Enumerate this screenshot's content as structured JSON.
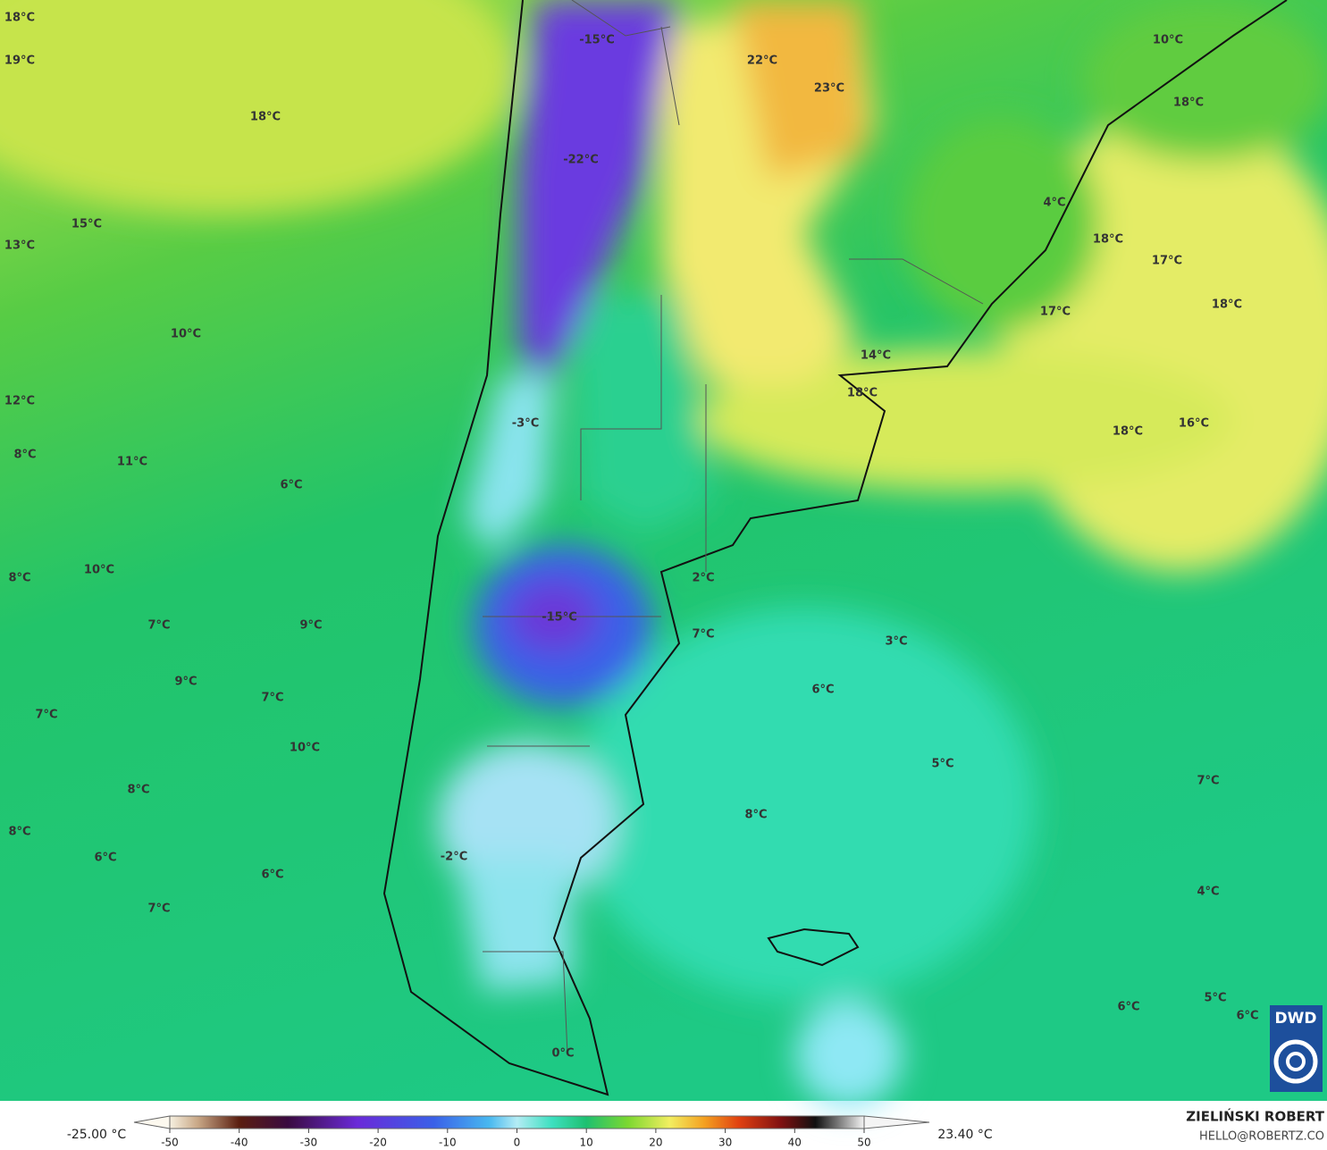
{
  "map": {
    "labels": [
      "18°C",
      "19°C",
      "18°C",
      "-15°C",
      "22°C",
      "23°C",
      "10°C",
      "18°C",
      "-22°C",
      "15°C",
      "13°C",
      "4°C",
      "18°C",
      "17°C",
      "18°C",
      "17°C",
      "10°C",
      "14°C",
      "18°C",
      "12°C",
      "18°C",
      "16°C",
      "-3°C",
      "8°C",
      "11°C",
      "6°C",
      "2°C",
      "8°C",
      "10°C",
      "-15°C",
      "7°C",
      "9°C",
      "7°C",
      "3°C",
      "9°C",
      "7°C",
      "6°C",
      "7°C",
      "10°C",
      "5°C",
      "7°C",
      "8°C",
      "8°C",
      "8°C",
      "-2°C",
      "6°C",
      "6°C",
      "4°C",
      "7°C",
      "5°C",
      "6°C",
      "6°C",
      "0°C"
    ]
  },
  "colorbar": {
    "lim": [
      -50,
      50
    ],
    "ticks": [
      -50,
      -40,
      -30,
      -20,
      -10,
      0,
      10,
      20,
      30,
      40,
      50
    ],
    "min_label": "-25.00 °C",
    "max_label": "23.40 °C"
  },
  "logo": "DWD",
  "author": "ZIELIŃSKI ROBERT",
  "email": "HELLO@ROBERTZ.CO"
}
